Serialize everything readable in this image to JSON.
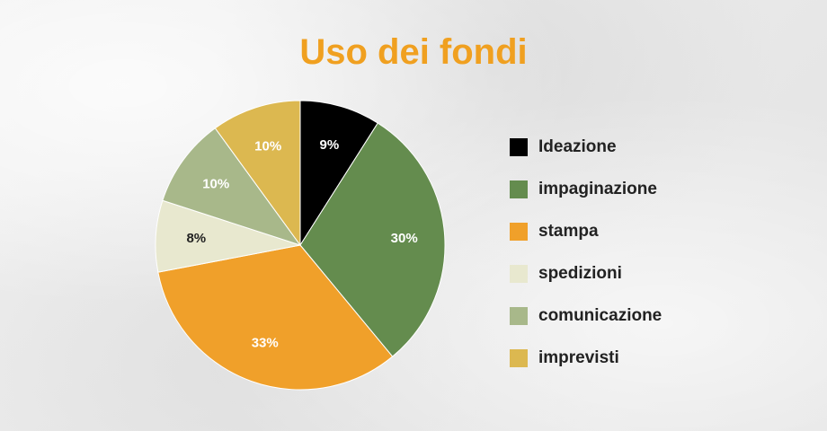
{
  "title": "Uso dei fondi",
  "colors": {
    "title": "#f0a020"
  },
  "chart_data": {
    "type": "pie",
    "labels": [
      "Ideazione",
      "impaginazione",
      "stampa",
      "spedizioni",
      "comunicazione",
      "imprevisti"
    ],
    "values": [
      9,
      30,
      33,
      8,
      10,
      10
    ],
    "value_labels": [
      "9%",
      "30%",
      "33%",
      "8%",
      "10%",
      "10%"
    ],
    "colors": [
      "#000000",
      "#648c4e",
      "#f0a02a",
      "#e8e8cf",
      "#a8b88a",
      "#dcb850"
    ],
    "label_colors": [
      "#ffffff",
      "#ffffff",
      "#ffffff",
      "#222222",
      "#ffffff",
      "#ffffff"
    ],
    "start": "12 o'clock",
    "direction": "clockwise",
    "legend_position": "right"
  }
}
